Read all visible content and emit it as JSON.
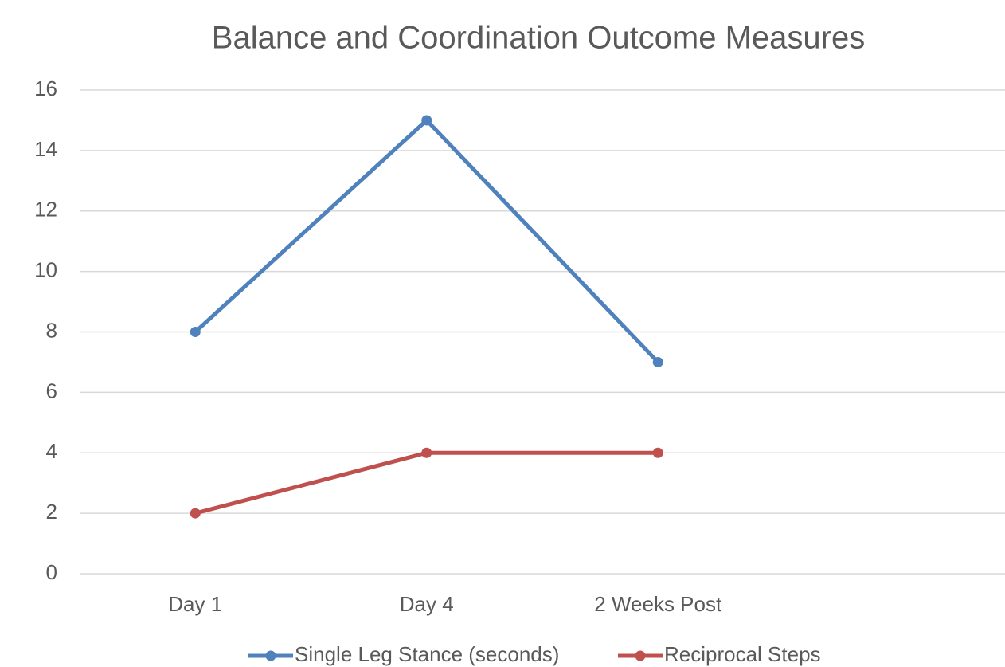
{
  "chart_data": {
    "type": "line",
    "title": "Balance and Coordination Outcome Measures",
    "categories": [
      "Day 1",
      "Day 4",
      "2 Weeks Post",
      null
    ],
    "series": [
      {
        "name": "Single Leg Stance (seconds)",
        "color": "#4f81bd",
        "values": [
          8,
          15,
          7,
          null
        ]
      },
      {
        "name": "Reciprocal Steps",
        "color": "#c0504d",
        "values": [
          2,
          4,
          4,
          null
        ]
      }
    ],
    "ylim": [
      0,
      16
    ],
    "yticks": [
      0,
      2,
      4,
      6,
      8,
      10,
      12,
      14,
      16
    ],
    "grid": true,
    "legend": "bottom"
  }
}
